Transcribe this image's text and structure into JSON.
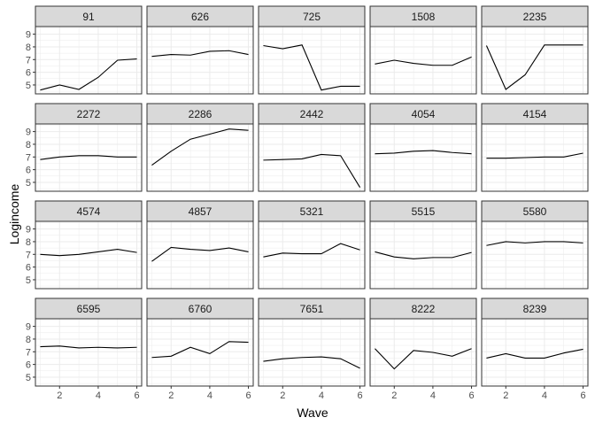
{
  "chart_data": {
    "type": "line",
    "facet_layout": "5 columns x 4 rows",
    "xlabel": "Wave",
    "ylabel": "Logincome",
    "xlim": [
      0.75,
      6.25
    ],
    "ylim": [
      4.3,
      9.6
    ],
    "x_ticks": [
      2,
      4,
      6
    ],
    "y_ticks": [
      5,
      6,
      7,
      8,
      9
    ],
    "x": [
      1,
      2,
      3,
      4,
      5,
      6
    ],
    "grid": true,
    "line_color": "#000000",
    "strip_fill": "#d9d9d9",
    "panels": [
      {
        "id": "91",
        "values": [
          4.6,
          5.0,
          4.65,
          5.6,
          6.95,
          7.05
        ]
      },
      {
        "id": "626",
        "values": [
          7.25,
          7.4,
          7.35,
          7.65,
          7.7,
          7.4
        ]
      },
      {
        "id": "725",
        "values": [
          8.1,
          7.85,
          8.15,
          4.6,
          4.9,
          4.9
        ]
      },
      {
        "id": "1508",
        "values": [
          6.65,
          6.95,
          6.7,
          6.55,
          6.55,
          7.2
        ]
      },
      {
        "id": "2235",
        "values": [
          8.1,
          4.65,
          5.8,
          8.15,
          8.15,
          8.15
        ]
      },
      {
        "id": "2272",
        "values": [
          6.8,
          7.0,
          7.1,
          7.1,
          7.0,
          7.0
        ]
      },
      {
        "id": "2286",
        "values": [
          6.35,
          7.45,
          8.4,
          8.8,
          9.2,
          9.1
        ]
      },
      {
        "id": "2442",
        "values": [
          6.75,
          6.8,
          6.85,
          7.2,
          7.1,
          4.6
        ]
      },
      {
        "id": "4054",
        "values": [
          7.25,
          7.3,
          7.45,
          7.5,
          7.35,
          7.25
        ]
      },
      {
        "id": "4154",
        "values": [
          6.9,
          6.9,
          6.95,
          7.0,
          7.0,
          7.3
        ]
      },
      {
        "id": "4574",
        "values": [
          7.0,
          6.9,
          7.0,
          7.2,
          7.4,
          7.15
        ]
      },
      {
        "id": "4857",
        "values": [
          6.45,
          7.55,
          7.4,
          7.3,
          7.5,
          7.2
        ]
      },
      {
        "id": "5321",
        "values": [
          6.8,
          7.1,
          7.05,
          7.05,
          7.85,
          7.35
        ]
      },
      {
        "id": "5515",
        "values": [
          7.2,
          6.8,
          6.65,
          6.75,
          6.75,
          7.15
        ]
      },
      {
        "id": "5580",
        "values": [
          7.7,
          8.0,
          7.9,
          8.0,
          8.0,
          7.9
        ]
      },
      {
        "id": "6595",
        "values": [
          7.4,
          7.45,
          7.3,
          7.35,
          7.3,
          7.35
        ]
      },
      {
        "id": "6760",
        "values": [
          6.55,
          6.65,
          7.35,
          6.85,
          7.8,
          7.75
        ]
      },
      {
        "id": "7651",
        "values": [
          6.25,
          6.45,
          6.55,
          6.6,
          6.45,
          5.7
        ]
      },
      {
        "id": "8222",
        "values": [
          7.25,
          5.65,
          7.1,
          6.95,
          6.65,
          7.25
        ]
      },
      {
        "id": "8239",
        "values": [
          6.5,
          6.85,
          6.5,
          6.5,
          6.9,
          7.2
        ]
      }
    ]
  }
}
